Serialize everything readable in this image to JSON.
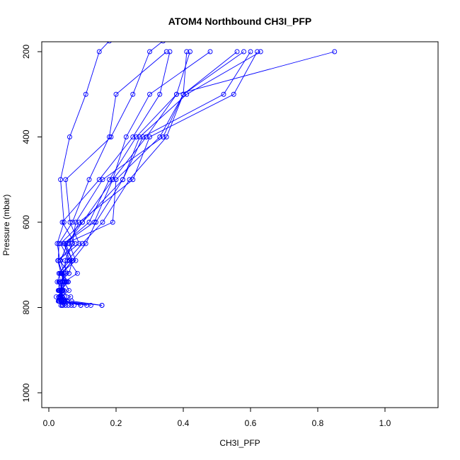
{
  "chart_data": {
    "type": "line",
    "title": "ATOM4 Northbound CH3I_PFP",
    "xlabel": "CH3I_PFP",
    "ylabel": "Pressure (mbar)",
    "xlim": [
      0,
      1.15
    ],
    "ylim": [
      1030,
      180
    ],
    "y_reversed": true,
    "grid": false,
    "line_color": "#0000ff",
    "x_ticks": [
      {
        "value": 0.0,
        "label": "0.0"
      },
      {
        "value": 0.2,
        "label": "0.2"
      },
      {
        "value": 0.4,
        "label": "0.4"
      },
      {
        "value": 0.6,
        "label": "0.6"
      },
      {
        "value": 0.8,
        "label": "0.8"
      },
      {
        "value": 1.0,
        "label": "1.0"
      }
    ],
    "y_ticks": [
      {
        "value": 200,
        "label": "200"
      },
      {
        "value": 400,
        "label": "400"
      },
      {
        "value": 600,
        "label": "600"
      },
      {
        "value": 800,
        "label": "800"
      },
      {
        "value": 1000,
        "label": "1000"
      }
    ],
    "series": [
      {
        "x": [
          0.095,
          0.055,
          0.047,
          0.032,
          0.03,
          0.06,
          0.033,
          0.025,
          0.045,
          0.035,
          0.062,
          0.11,
          0.15,
          0.18,
          0.2,
          0.24,
          0.3,
          0.32
        ]
      },
      {
        "x": [
          0.113,
          0.043,
          0.04,
          0.028,
          0.052,
          0.036,
          0.027,
          0.09,
          0.063,
          0.05,
          0.185,
          0.25,
          0.3,
          0.34,
          0.35
        ]
      },
      {
        "x": [
          0.125,
          0.047,
          0.04,
          0.03,
          0.045,
          0.085,
          0.06,
          0.035,
          0.1,
          0.19,
          0.29,
          0.38,
          0.42
        ]
      },
      {
        "x": [
          0.158,
          0.038,
          0.033,
          0.032,
          0.058,
          0.04,
          0.027,
          0.078,
          0.04,
          0.15,
          0.25,
          0.33,
          0.36
        ]
      },
      {
        "x": [
          0.158,
          0.068,
          0.035,
          0.06,
          0.045,
          0.04,
          0.028,
          0.03,
          0.07,
          0.12,
          0.18,
          0.2,
          0.35
        ]
      },
      {
        "x": [
          0.095,
          0.04,
          0.065,
          0.03,
          0.03,
          0.06,
          0.07,
          0.05,
          0.19,
          0.2,
          0.33,
          0.4,
          0.41
        ]
      },
      {
        "x": [
          0.067,
          0.055,
          0.04,
          0.038,
          0.04,
          0.045,
          0.035,
          0.055,
          0.1,
          0.22,
          0.28,
          0.52,
          0.6
        ]
      },
      {
        "x": [
          0.075,
          0.048,
          0.03,
          0.035,
          0.042,
          0.038,
          0.07,
          0.045,
          0.12,
          0.18,
          0.26,
          0.38,
          0.85
        ]
      },
      {
        "x": [
          0.04,
          0.045,
          0.035,
          0.038,
          0.055,
          0.04,
          0.07,
          0.11,
          0.14,
          0.22,
          0.27,
          0.41,
          0.63
        ]
      },
      {
        "x": [
          0.058,
          0.032,
          0.022,
          0.042,
          0.035,
          0.03,
          0.062,
          0.045,
          0.135,
          0.19,
          0.23,
          0.3,
          0.48
        ]
      },
      {
        "x": [
          0.05,
          0.03,
          0.038,
          0.04,
          0.048,
          0.036,
          0.08,
          0.06,
          0.09,
          0.25,
          0.3,
          0.55,
          0.62
        ]
      },
      {
        "x": [
          0.042,
          0.028,
          0.035,
          0.045,
          0.025,
          0.033,
          0.055,
          0.1,
          0.16,
          0.24,
          0.35,
          0.4,
          0.56
        ]
      },
      {
        "x": [
          0.036,
          0.03,
          0.035,
          0.04,
          0.033,
          0.05,
          0.048,
          0.07,
          0.08,
          0.16,
          0.34,
          0.4,
          0.58
        ]
      }
    ]
  }
}
